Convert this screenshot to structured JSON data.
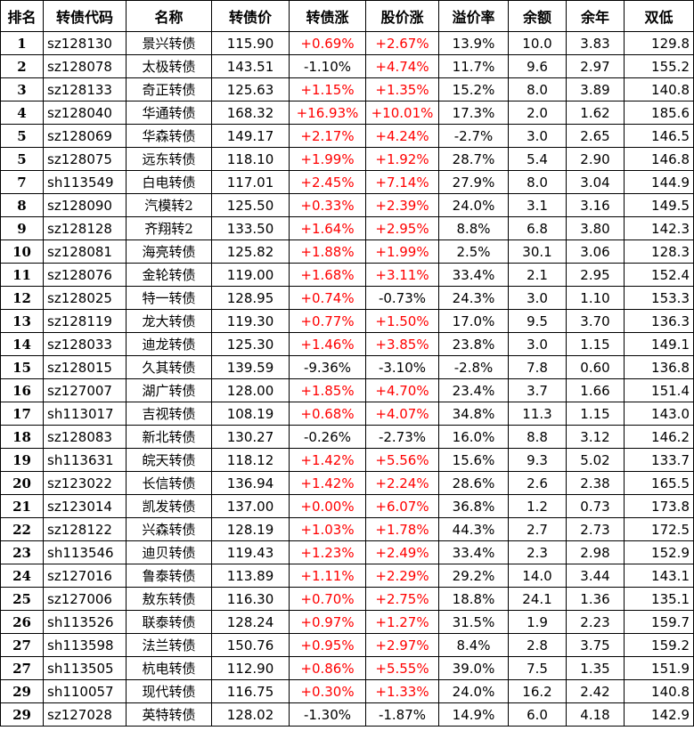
{
  "headers": [
    "排名",
    "转债代码",
    "名称",
    "转债价",
    "转债涨",
    "股价涨",
    "溢价率",
    "余额",
    "余年",
    "双低"
  ],
  "colors": {
    "positive": "#ff0000",
    "neutral": "#000000"
  },
  "rows": [
    {
      "rank": "1",
      "code": "sz128130",
      "name": "景兴转债",
      "price": "115.90",
      "bond_chg": "+0.69%",
      "stock_chg": "+2.67%",
      "premium": "13.9%",
      "balance": "10.0",
      "years": "3.83",
      "double_low": "129.8"
    },
    {
      "rank": "2",
      "code": "sz128078",
      "name": "太极转债",
      "price": "143.51",
      "bond_chg": "-1.10%",
      "stock_chg": "+4.74%",
      "premium": "11.7%",
      "balance": "9.6",
      "years": "2.97",
      "double_low": "155.2"
    },
    {
      "rank": "3",
      "code": "sz128133",
      "name": "奇正转债",
      "price": "125.63",
      "bond_chg": "+1.15%",
      "stock_chg": "+1.35%",
      "premium": "15.2%",
      "balance": "8.0",
      "years": "3.89",
      "double_low": "140.8"
    },
    {
      "rank": "4",
      "code": "sz128040",
      "name": "华通转债",
      "price": "168.32",
      "bond_chg": "+16.93%",
      "stock_chg": "+10.01%",
      "premium": "17.3%",
      "balance": "2.0",
      "years": "1.62",
      "double_low": "185.6"
    },
    {
      "rank": "5",
      "code": "sz128069",
      "name": "华森转债",
      "price": "149.17",
      "bond_chg": "+2.17%",
      "stock_chg": "+4.24%",
      "premium": "-2.7%",
      "balance": "3.0",
      "years": "2.65",
      "double_low": "146.5"
    },
    {
      "rank": "5",
      "code": "sz128075",
      "name": "远东转债",
      "price": "118.10",
      "bond_chg": "+1.99%",
      "stock_chg": "+1.92%",
      "premium": "28.7%",
      "balance": "5.4",
      "years": "2.90",
      "double_low": "146.8"
    },
    {
      "rank": "7",
      "code": "sh113549",
      "name": "白电转债",
      "price": "117.01",
      "bond_chg": "+2.45%",
      "stock_chg": "+7.14%",
      "premium": "27.9%",
      "balance": "8.0",
      "years": "3.04",
      "double_low": "144.9"
    },
    {
      "rank": "8",
      "code": "sz128090",
      "name": "汽模转2",
      "price": "125.50",
      "bond_chg": "+0.33%",
      "stock_chg": "+2.39%",
      "premium": "24.0%",
      "balance": "3.1",
      "years": "3.16",
      "double_low": "149.5"
    },
    {
      "rank": "9",
      "code": "sz128128",
      "name": "齐翔转2",
      "price": "133.50",
      "bond_chg": "+1.64%",
      "stock_chg": "+2.95%",
      "premium": "8.8%",
      "balance": "6.8",
      "years": "3.80",
      "double_low": "142.3"
    },
    {
      "rank": "10",
      "code": "sz128081",
      "name": "海亮转债",
      "price": "125.82",
      "bond_chg": "+1.88%",
      "stock_chg": "+1.99%",
      "premium": "2.5%",
      "balance": "30.1",
      "years": "3.06",
      "double_low": "128.3"
    },
    {
      "rank": "11",
      "code": "sz128076",
      "name": "金轮转债",
      "price": "119.00",
      "bond_chg": "+1.68%",
      "stock_chg": "+3.11%",
      "premium": "33.4%",
      "balance": "2.1",
      "years": "2.95",
      "double_low": "152.4"
    },
    {
      "rank": "12",
      "code": "sz128025",
      "name": "特一转债",
      "price": "128.95",
      "bond_chg": "+0.74%",
      "stock_chg": "-0.73%",
      "premium": "24.3%",
      "balance": "3.0",
      "years": "1.10",
      "double_low": "153.3"
    },
    {
      "rank": "13",
      "code": "sz128119",
      "name": "龙大转债",
      "price": "119.30",
      "bond_chg": "+0.77%",
      "stock_chg": "+1.50%",
      "premium": "17.0%",
      "balance": "9.5",
      "years": "3.70",
      "double_low": "136.3"
    },
    {
      "rank": "14",
      "code": "sz128033",
      "name": "迪龙转债",
      "price": "125.30",
      "bond_chg": "+1.46%",
      "stock_chg": "+3.85%",
      "premium": "23.8%",
      "balance": "3.0",
      "years": "1.15",
      "double_low": "149.1"
    },
    {
      "rank": "15",
      "code": "sz128015",
      "name": "久其转债",
      "price": "139.59",
      "bond_chg": "-9.36%",
      "stock_chg": "-3.10%",
      "premium": "-2.8%",
      "balance": "7.8",
      "years": "0.60",
      "double_low": "136.8"
    },
    {
      "rank": "16",
      "code": "sz127007",
      "name": "湖广转债",
      "price": "128.00",
      "bond_chg": "+1.85%",
      "stock_chg": "+4.70%",
      "premium": "23.4%",
      "balance": "3.7",
      "years": "1.66",
      "double_low": "151.4"
    },
    {
      "rank": "17",
      "code": "sh113017",
      "name": "吉视转债",
      "price": "108.19",
      "bond_chg": "+0.68%",
      "stock_chg": "+4.07%",
      "premium": "34.8%",
      "balance": "11.3",
      "years": "1.15",
      "double_low": "143.0"
    },
    {
      "rank": "18",
      "code": "sz128083",
      "name": "新北转债",
      "price": "130.27",
      "bond_chg": "-0.26%",
      "stock_chg": "-2.73%",
      "premium": "16.0%",
      "balance": "8.8",
      "years": "3.12",
      "double_low": "146.2"
    },
    {
      "rank": "19",
      "code": "sh113631",
      "name": "皖天转债",
      "price": "118.12",
      "bond_chg": "+1.42%",
      "stock_chg": "+5.56%",
      "premium": "15.6%",
      "balance": "9.3",
      "years": "5.02",
      "double_low": "133.7"
    },
    {
      "rank": "20",
      "code": "sz123022",
      "name": "长信转债",
      "price": "136.94",
      "bond_chg": "+1.42%",
      "stock_chg": "+2.24%",
      "premium": "28.6%",
      "balance": "2.6",
      "years": "2.38",
      "double_low": "165.5"
    },
    {
      "rank": "21",
      "code": "sz123014",
      "name": "凯发转债",
      "price": "137.00",
      "bond_chg": "+0.00%",
      "stock_chg": "+6.07%",
      "premium": "36.8%",
      "balance": "1.2",
      "years": "0.73",
      "double_low": "173.8"
    },
    {
      "rank": "22",
      "code": "sz128122",
      "name": "兴森转债",
      "price": "128.19",
      "bond_chg": "+1.03%",
      "stock_chg": "+1.78%",
      "premium": "44.3%",
      "balance": "2.7",
      "years": "2.73",
      "double_low": "172.5"
    },
    {
      "rank": "23",
      "code": "sh113546",
      "name": "迪贝转债",
      "price": "119.43",
      "bond_chg": "+1.23%",
      "stock_chg": "+2.49%",
      "premium": "33.4%",
      "balance": "2.3",
      "years": "2.98",
      "double_low": "152.9"
    },
    {
      "rank": "24",
      "code": "sz127016",
      "name": "鲁泰转债",
      "price": "113.89",
      "bond_chg": "+1.11%",
      "stock_chg": "+2.29%",
      "premium": "29.2%",
      "balance": "14.0",
      "years": "3.44",
      "double_low": "143.1"
    },
    {
      "rank": "25",
      "code": "sz127006",
      "name": "敖东转债",
      "price": "116.30",
      "bond_chg": "+0.70%",
      "stock_chg": "+2.75%",
      "premium": "18.8%",
      "balance": "24.1",
      "years": "1.36",
      "double_low": "135.1"
    },
    {
      "rank": "26",
      "code": "sh113526",
      "name": "联泰转债",
      "price": "128.24",
      "bond_chg": "+0.97%",
      "stock_chg": "+1.27%",
      "premium": "31.5%",
      "balance": "1.9",
      "years": "2.23",
      "double_low": "159.7"
    },
    {
      "rank": "27",
      "code": "sh113598",
      "name": "法兰转债",
      "price": "150.76",
      "bond_chg": "+0.95%",
      "stock_chg": "+2.97%",
      "premium": "8.4%",
      "balance": "2.8",
      "years": "3.75",
      "double_low": "159.2"
    },
    {
      "rank": "27",
      "code": "sh113505",
      "name": "杭电转债",
      "price": "112.90",
      "bond_chg": "+0.86%",
      "stock_chg": "+5.55%",
      "premium": "39.0%",
      "balance": "7.5",
      "years": "1.35",
      "double_low": "151.9"
    },
    {
      "rank": "29",
      "code": "sh110057",
      "name": "现代转债",
      "price": "116.75",
      "bond_chg": "+0.30%",
      "stock_chg": "+1.33%",
      "premium": "24.0%",
      "balance": "16.2",
      "years": "2.42",
      "double_low": "140.8"
    },
    {
      "rank": "29",
      "code": "sz127028",
      "name": "英特转债",
      "price": "128.02",
      "bond_chg": "-1.30%",
      "stock_chg": "-1.87%",
      "premium": "14.9%",
      "balance": "6.0",
      "years": "4.18",
      "double_low": "142.9"
    }
  ]
}
